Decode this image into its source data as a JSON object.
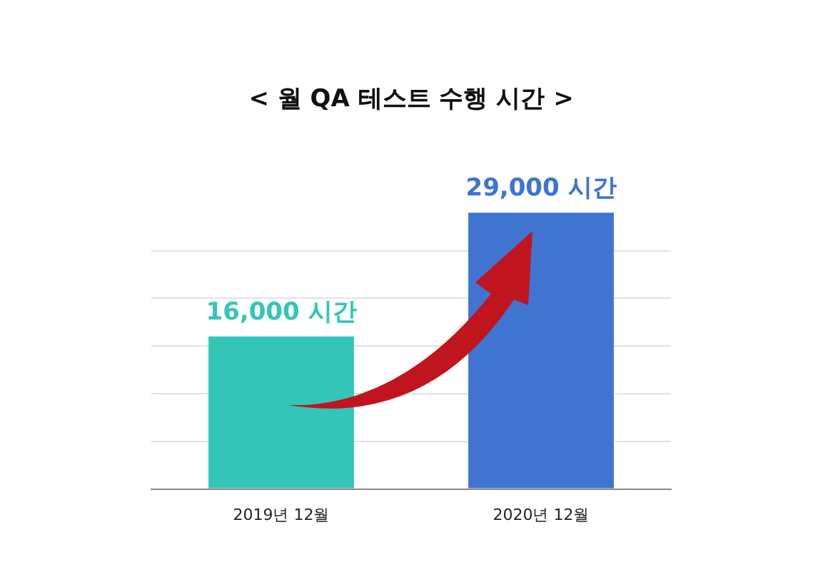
{
  "chart_data": {
    "type": "bar",
    "title": "< 월 QA 테스트 수행 시간 >",
    "categories": [
      "2019년 12월",
      "2020년 12월"
    ],
    "values": [
      16000,
      29000
    ],
    "colors": [
      "#33c6b8",
      "#3f74d0"
    ],
    "value_labels": [
      "16,000 시간",
      "29,000 시간"
    ],
    "yticks": [
      {
        "value": 0,
        "label": null
      },
      {
        "value": 5000,
        "label": null
      },
      {
        "value": 10000,
        "label": null
      },
      {
        "value": 15000,
        "label": null
      },
      {
        "value": 20000,
        "label": null
      },
      {
        "value": 25000,
        "label": null
      }
    ],
    "grid": "y",
    "tick_labels": "x",
    "legend": false
  }
}
